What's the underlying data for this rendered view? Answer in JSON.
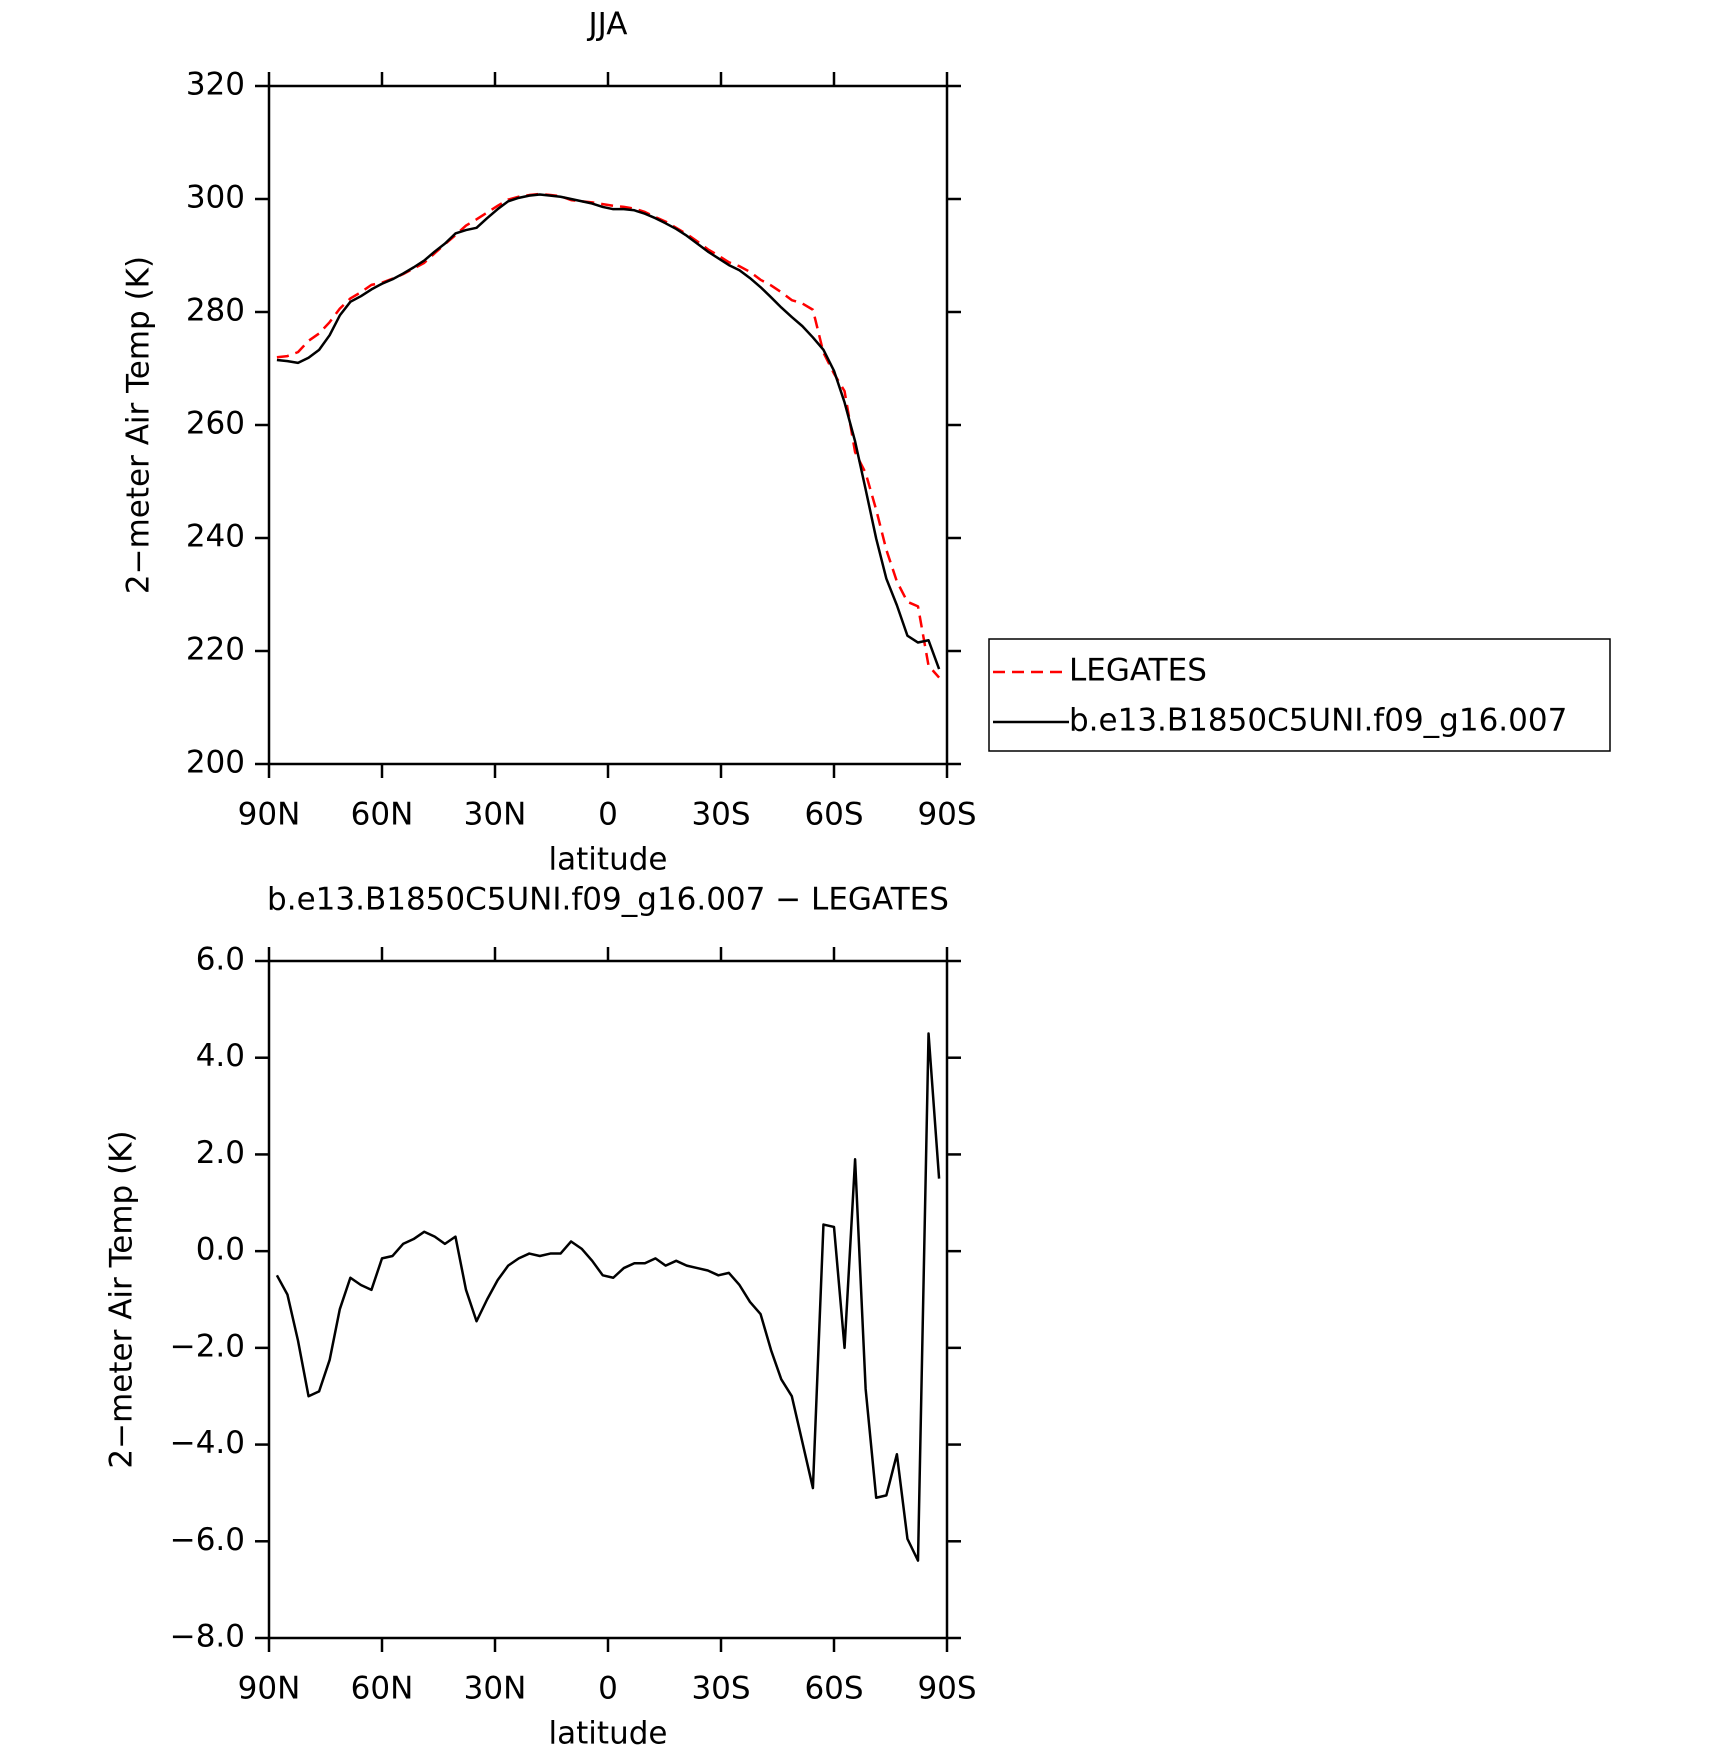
{
  "chart_data": [
    {
      "type": "line",
      "title": "JJA",
      "xlabel": "latitude",
      "ylabel": "2−meter Air Temp (K)",
      "x": [
        87.9,
        85.1,
        82.3,
        79.5,
        76.7,
        73.9,
        71.2,
        68.4,
        65.6,
        62.8,
        60.0,
        57.2,
        54.4,
        51.6,
        48.8,
        46.0,
        43.3,
        40.5,
        37.7,
        34.9,
        32.1,
        29.3,
        26.5,
        23.7,
        20.9,
        18.1,
        15.3,
        12.6,
        9.8,
        7.0,
        4.2,
        1.4,
        -1.4,
        -4.2,
        -7.0,
        -9.8,
        -12.6,
        -15.3,
        -18.1,
        -20.9,
        -23.7,
        -26.5,
        -29.3,
        -32.1,
        -34.9,
        -37.7,
        -40.5,
        -43.3,
        -46.0,
        -48.8,
        -51.6,
        -54.4,
        -57.2,
        -60.0,
        -62.8,
        -65.6,
        -68.4,
        -71.2,
        -73.9,
        -76.7,
        -79.5,
        -82.3,
        -85.1,
        -87.9
      ],
      "series": [
        {
          "name": "LEGATES",
          "color": "#ff0000",
          "style": "dashed",
          "values": [
            272.0,
            272.2,
            272.9,
            274.9,
            276.2,
            278.2,
            280.6,
            282.4,
            283.5,
            284.8,
            285.2,
            285.9,
            286.7,
            287.7,
            288.7,
            290.4,
            292.0,
            293.6,
            295.3,
            296.4,
            297.6,
            298.8,
            299.9,
            300.4,
            300.7,
            300.9,
            300.7,
            300.5,
            299.8,
            299.6,
            299.4,
            299.1,
            298.8,
            298.6,
            298.3,
            297.7,
            296.8,
            296.0,
            294.9,
            293.8,
            292.5,
            291.1,
            290.0,
            288.8,
            288.1,
            287.1,
            285.7,
            284.7,
            283.5,
            282.1,
            281.5,
            280.4,
            272.8,
            269.1,
            266.0,
            255.2,
            251.5,
            245.0,
            237.9,
            232.3,
            228.7,
            227.9,
            217.4,
            215.3
          ]
        },
        {
          "name": "b.e13.B1850C5UNI.f09_g16.007",
          "color": "#000000",
          "style": "solid",
          "values": [
            271.5,
            271.3,
            271.0,
            271.9,
            273.3,
            275.9,
            279.4,
            281.8,
            282.8,
            284.0,
            285.0,
            285.8,
            286.8,
            287.9,
            289.1,
            290.7,
            292.1,
            293.9,
            294.5,
            294.9,
            296.6,
            298.2,
            299.6,
            300.2,
            300.6,
            300.8,
            300.6,
            300.4,
            300.0,
            299.6,
            299.2,
            298.6,
            298.2,
            298.2,
            298.0,
            297.4,
            296.6,
            295.7,
            294.7,
            293.5,
            292.1,
            290.7,
            289.5,
            288.3,
            287.4,
            286.0,
            284.4,
            282.6,
            280.8,
            279.1,
            277.5,
            275.5,
            273.3,
            269.6,
            264.0,
            257.1,
            248.6,
            239.9,
            232.8,
            228.1,
            222.7,
            221.5,
            221.9,
            216.8
          ]
        }
      ],
      "xlim": [
        90,
        -90
      ],
      "xticks": [
        {
          "value": 90,
          "label": "90N"
        },
        {
          "value": 60,
          "label": "60N"
        },
        {
          "value": 30,
          "label": "30N"
        },
        0,
        {
          "value": -30,
          "label": "30S"
        },
        {
          "value": -60,
          "label": "60S"
        },
        {
          "value": -90,
          "label": "90S"
        }
      ],
      "ylim": [
        200,
        320
      ],
      "yticks": [
        200,
        220,
        240,
        260,
        280,
        300,
        320
      ],
      "legend": "right"
    },
    {
      "type": "line",
      "title": "b.e13.B1850C5UNI.f09_g16.007 − LEGATES",
      "xlabel": "latitude",
      "ylabel": "2−meter Air Temp (K)",
      "x": [
        87.9,
        85.1,
        82.3,
        79.5,
        76.7,
        73.9,
        71.2,
        68.4,
        65.6,
        62.8,
        60.0,
        57.2,
        54.4,
        51.6,
        48.8,
        46.0,
        43.3,
        40.5,
        37.7,
        34.9,
        32.1,
        29.3,
        26.5,
        23.7,
        20.9,
        18.1,
        15.3,
        12.6,
        9.8,
        7.0,
        4.2,
        1.4,
        -1.4,
        -4.2,
        -7.0,
        -9.8,
        -12.6,
        -15.3,
        -18.1,
        -20.9,
        -23.7,
        -26.5,
        -29.3,
        -32.1,
        -34.9,
        -37.7,
        -40.5,
        -43.3,
        -46.0,
        -48.8,
        -51.6,
        -54.4,
        -57.2,
        -60.0,
        -62.8,
        -65.6,
        -68.4,
        -71.2,
        -73.9,
        -76.7,
        -79.5,
        -82.3,
        -85.1,
        -87.9
      ],
      "values": [
        -0.5,
        -0.9,
        -1.85,
        -3.0,
        -2.9,
        -2.25,
        -1.2,
        -0.55,
        -0.7,
        -0.8,
        -0.15,
        -0.1,
        0.15,
        0.25,
        0.4,
        0.3,
        0.15,
        0.3,
        -0.8,
        -1.45,
        -1.0,
        -0.6,
        -0.3,
        -0.15,
        -0.05,
        -0.1,
        -0.05,
        -0.05,
        0.2,
        0.05,
        -0.2,
        -0.5,
        -0.55,
        -0.35,
        -0.25,
        -0.25,
        -0.15,
        -0.3,
        -0.2,
        -0.3,
        -0.35,
        -0.4,
        -0.5,
        -0.45,
        -0.7,
        -1.05,
        -1.3,
        -2.05,
        -2.65,
        -3.0,
        -3.95,
        -4.9,
        0.55,
        0.5,
        -2.0,
        1.9,
        -2.85,
        -5.1,
        -5.05,
        -4.2,
        -5.95,
        -6.4,
        4.5,
        1.5
      ],
      "color": "#000000",
      "xlim": [
        90,
        -90
      ],
      "xticks": [
        {
          "value": 90,
          "label": "90N"
        },
        {
          "value": 60,
          "label": "60N"
        },
        {
          "value": 30,
          "label": "30N"
        },
        0,
        {
          "value": -30,
          "label": "30S"
        },
        {
          "value": -60,
          "label": "60S"
        },
        {
          "value": -90,
          "label": "90S"
        }
      ],
      "ylim": [
        -8,
        6
      ],
      "yticks": [
        {
          "value": -8,
          "label": "−8.0"
        },
        {
          "value": -6,
          "label": "−6.0"
        },
        {
          "value": -4,
          "label": "−4.0"
        },
        {
          "value": -2,
          "label": "−2.0"
        },
        {
          "value": 0,
          "label": "0.0"
        },
        {
          "value": 2,
          "label": "2.0"
        },
        {
          "value": 4,
          "label": "4.0"
        },
        {
          "value": 6,
          "label": "6.0"
        }
      ]
    }
  ]
}
